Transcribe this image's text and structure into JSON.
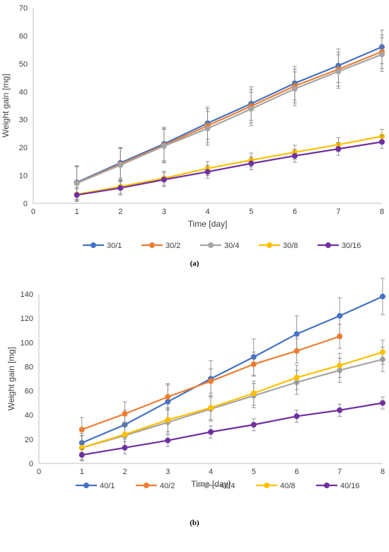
{
  "chart_data": [
    {
      "type": "line",
      "panel_label": "(a)",
      "xlabel": "Time [day]",
      "ylabel": "Weight gain [mg]",
      "xlim": [
        0,
        8
      ],
      "ylim": [
        0,
        70
      ],
      "x_ticks": [
        0,
        1,
        2,
        3,
        4,
        5,
        6,
        7,
        8
      ],
      "y_ticks": [
        0,
        10,
        20,
        30,
        40,
        50,
        60,
        70
      ],
      "grid": false,
      "legend_position": "bottom",
      "x": [
        1,
        2,
        3,
        4,
        5,
        6,
        7,
        8
      ],
      "series": [
        {
          "name": "30/1",
          "color": "#4472C4",
          "values": [
            7.5,
            14.5,
            21.3,
            28.7,
            35.7,
            43.0,
            49.3,
            56.0
          ],
          "errors": [
            6.0,
            5.5,
            6.0,
            5.8,
            6.0,
            6.0,
            6.0,
            6.0
          ]
        },
        {
          "name": "30/2",
          "color": "#ED7D31",
          "values": [
            7.3,
            14.0,
            20.8,
            27.8,
            34.8,
            42.0,
            48.0,
            54.3
          ],
          "errors": [
            5.8,
            5.8,
            6.0,
            6.0,
            6.0,
            6.0,
            6.0,
            6.0
          ]
        },
        {
          "name": "30/4",
          "color": "#A5A5A5",
          "values": [
            7.2,
            13.7,
            20.5,
            26.8,
            33.8,
            41.0,
            47.2,
            53.3
          ],
          "errors": [
            6.0,
            6.0,
            6.0,
            6.0,
            6.0,
            6.0,
            6.0,
            6.0
          ]
        },
        {
          "name": "30/8",
          "color": "#FFC000",
          "values": [
            3.2,
            6.0,
            9.0,
            12.5,
            15.5,
            18.3,
            21.0,
            24.0
          ],
          "errors": [
            2.5,
            2.5,
            2.5,
            2.5,
            2.5,
            2.5,
            2.5,
            2.5
          ]
        },
        {
          "name": "30/16",
          "color": "#7030A0",
          "values": [
            3.0,
            5.5,
            8.5,
            11.3,
            14.3,
            17.0,
            19.5,
            22.0
          ],
          "errors": [
            2.2,
            2.5,
            2.5,
            2.3,
            2.3,
            2.3,
            2.3,
            2.3
          ]
        }
      ]
    },
    {
      "type": "line",
      "panel_label": "(b)",
      "xlabel": "Time [day]",
      "ylabel": "Weight gain [mg]",
      "xlim": [
        0,
        8
      ],
      "ylim": [
        0,
        140
      ],
      "x_ticks": [
        0,
        1,
        2,
        3,
        4,
        5,
        6,
        7,
        8
      ],
      "y_ticks": [
        0,
        20,
        40,
        60,
        80,
        100,
        120,
        140
      ],
      "grid": false,
      "legend_position": "bottom",
      "x": [
        1,
        2,
        3,
        4,
        5,
        6,
        7,
        8
      ],
      "series": [
        {
          "name": "40/1",
          "color": "#4472C4",
          "values": [
            17,
            32,
            51,
            70,
            88,
            107,
            122,
            138
          ],
          "errors": [
            8,
            12,
            15,
            15,
            15,
            15,
            15,
            15
          ]
        },
        {
          "name": "40/2",
          "color": "#ED7D31",
          "values": [
            28,
            41,
            55,
            68,
            82,
            93,
            105,
            null
          ],
          "errors": [
            10,
            10,
            10,
            10,
            10,
            10,
            10,
            null
          ]
        },
        {
          "name": "40/4",
          "color": "#A5A5A5",
          "values": [
            13,
            23,
            34,
            45,
            56,
            67,
            77,
            86
          ],
          "errors": [
            10,
            10,
            10,
            10,
            10,
            10,
            10,
            10
          ]
        },
        {
          "name": "40/8",
          "color": "#FFC000",
          "values": [
            13,
            24,
            36,
            46,
            58,
            71,
            81,
            92
          ],
          "errors": [
            10,
            10,
            10,
            10,
            10,
            10,
            10,
            10
          ]
        },
        {
          "name": "40/16",
          "color": "#7030A0",
          "values": [
            7,
            13,
            19,
            26,
            32,
            39,
            44,
            50
          ],
          "errors": [
            5,
            5,
            5,
            5,
            5,
            5,
            5,
            5
          ]
        }
      ]
    }
  ]
}
